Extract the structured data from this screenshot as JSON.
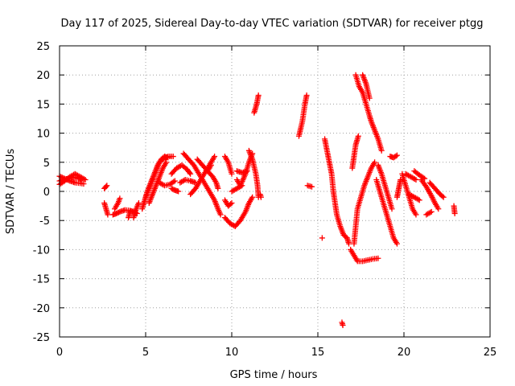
{
  "chart_data": {
    "type": "scatter",
    "title": "Day 117 of 2025, Sidereal Day-to-day VTEC variation (SDTVAR) for receiver ptgg",
    "xlabel": "GPS time / hours",
    "ylabel": "SDTVAR / TECUs",
    "xlim": [
      0,
      25
    ],
    "ylim": [
      -25,
      25
    ],
    "xticks": [
      "0",
      "5",
      "10",
      "15",
      "20",
      "25"
    ],
    "yticks": [
      "-25",
      "-20",
      "-15",
      "-10",
      "-5",
      "0",
      "5",
      "10",
      "15",
      "20",
      "25"
    ],
    "grid": true,
    "marker": "+",
    "color": "#ff0000",
    "segments": [
      [
        [
          0.0,
          1.2
        ],
        [
          0.3,
          1.8
        ],
        [
          0.6,
          2.5
        ],
        [
          0.9,
          3.0
        ],
        [
          1.2,
          2.5
        ],
        [
          1.5,
          2.0
        ]
      ],
      [
        [
          0.0,
          2.6
        ],
        [
          0.3,
          2.2
        ],
        [
          0.6,
          1.8
        ],
        [
          0.9,
          1.5
        ],
        [
          1.2,
          1.4
        ],
        [
          1.4,
          1.3
        ]
      ],
      [
        [
          0.0,
          1.8
        ],
        [
          0.2,
          2.0
        ],
        [
          0.5,
          2.2
        ],
        [
          0.8,
          2.4
        ],
        [
          1.1,
          2.2
        ],
        [
          1.3,
          2.0
        ]
      ],
      [
        [
          2.6,
          0.5
        ],
        [
          2.75,
          1.0
        ]
      ],
      [
        [
          2.6,
          -2.0
        ],
        [
          2.7,
          -3.0
        ],
        [
          2.8,
          -4.0
        ]
      ],
      [
        [
          3.1,
          -4.0
        ],
        [
          3.3,
          -3.8
        ],
        [
          3.5,
          -3.5
        ],
        [
          3.8,
          -3.2
        ],
        [
          4.1,
          -3.3
        ],
        [
          4.3,
          -3.5
        ],
        [
          4.5,
          -3.8
        ]
      ],
      [
        [
          3.2,
          -3.0
        ],
        [
          3.4,
          -2.0
        ],
        [
          3.5,
          -1.2
        ]
      ],
      [
        [
          4.0,
          -4.5
        ],
        [
          4.1,
          -3.5
        ]
      ],
      [
        [
          4.3,
          -4.5
        ],
        [
          4.45,
          -3.0
        ],
        [
          4.6,
          -2.0
        ]
      ],
      [
        [
          4.8,
          -3.0
        ],
        [
          4.95,
          -1.5
        ],
        [
          5.1,
          0.0
        ],
        [
          5.3,
          1.5
        ],
        [
          5.5,
          3.0
        ],
        [
          5.7,
          4.5
        ],
        [
          5.9,
          5.5
        ],
        [
          6.1,
          6.0
        ],
        [
          6.3,
          5.8
        ]
      ],
      [
        [
          5.0,
          -1.0
        ],
        [
          5.2,
          0.5
        ],
        [
          5.4,
          2.0
        ],
        [
          5.6,
          3.5
        ],
        [
          5.8,
          5.0
        ],
        [
          6.0,
          5.5
        ],
        [
          6.3,
          6.0
        ],
        [
          6.6,
          6.0
        ]
      ],
      [
        [
          5.2,
          -2.0
        ],
        [
          5.4,
          -0.5
        ],
        [
          5.6,
          1.0
        ],
        [
          5.8,
          2.5
        ],
        [
          6.0,
          4.0
        ],
        [
          6.2,
          5.0
        ]
      ],
      [
        [
          5.8,
          1.5
        ],
        [
          6.1,
          1.0
        ],
        [
          6.4,
          1.2
        ],
        [
          6.7,
          1.8
        ]
      ],
      [
        [
          6.5,
          3.0
        ],
        [
          6.8,
          4.0
        ],
        [
          7.1,
          4.5
        ],
        [
          7.4,
          3.8
        ],
        [
          7.6,
          3.0
        ]
      ],
      [
        [
          6.5,
          0.5
        ],
        [
          6.7,
          0.2
        ],
        [
          6.9,
          0.0
        ]
      ],
      [
        [
          7.2,
          6.5
        ],
        [
          7.5,
          5.5
        ],
        [
          7.8,
          4.5
        ],
        [
          8.1,
          3.0
        ],
        [
          8.4,
          1.5
        ],
        [
          8.7,
          0.0
        ],
        [
          9.0,
          -1.5
        ],
        [
          9.2,
          -3.0
        ],
        [
          9.35,
          -4.0
        ]
      ],
      [
        [
          7.0,
          1.5
        ],
        [
          7.3,
          2.0
        ],
        [
          7.6,
          1.8
        ],
        [
          7.9,
          1.5
        ]
      ],
      [
        [
          8.0,
          5.5
        ],
        [
          8.3,
          4.5
        ],
        [
          8.6,
          3.5
        ],
        [
          8.9,
          2.5
        ],
        [
          9.1,
          1.5
        ],
        [
          9.2,
          0.5
        ]
      ],
      [
        [
          7.6,
          -0.5
        ],
        [
          7.9,
          0.5
        ],
        [
          8.2,
          2.0
        ],
        [
          8.5,
          3.5
        ],
        [
          8.8,
          5.0
        ],
        [
          9.0,
          6.0
        ]
      ],
      [
        [
          8.8,
          4.5
        ],
        [
          8.6,
          3.5
        ]
      ],
      [
        [
          9.6,
          -1.5
        ],
        [
          9.8,
          -2.5
        ],
        [
          10.0,
          -2.0
        ]
      ],
      [
        [
          9.6,
          -4.5
        ],
        [
          9.9,
          -5.5
        ],
        [
          10.2,
          -6.0
        ],
        [
          10.5,
          -5.0
        ],
        [
          10.8,
          -3.5
        ],
        [
          11.0,
          -2.0
        ],
        [
          11.2,
          -1.0
        ]
      ],
      [
        [
          9.6,
          6.0
        ],
        [
          9.8,
          5.0
        ],
        [
          10.0,
          3.0
        ]
      ],
      [
        [
          10.3,
          2.0
        ],
        [
          10.5,
          1.0
        ],
        [
          10.8,
          3.0
        ],
        [
          11.0,
          5.0
        ],
        [
          11.2,
          6.5
        ]
      ],
      [
        [
          10.3,
          3.5
        ],
        [
          10.6,
          3.2
        ],
        [
          10.9,
          3.5
        ]
      ],
      [
        [
          10.0,
          0.0
        ],
        [
          10.3,
          0.5
        ],
        [
          10.6,
          1.0
        ]
      ],
      [
        [
          11.0,
          7.0
        ],
        [
          11.2,
          5.5
        ],
        [
          11.4,
          3.0
        ],
        [
          11.5,
          1.0
        ],
        [
          11.55,
          -1.0
        ]
      ],
      [
        [
          11.3,
          13.5
        ],
        [
          11.45,
          15.0
        ],
        [
          11.55,
          16.5
        ]
      ],
      [
        [
          11.7,
          -1.0
        ],
        [
          11.65,
          -0.5
        ]
      ],
      [
        [
          13.9,
          9.5
        ],
        [
          14.1,
          12.0
        ],
        [
          14.25,
          15.0
        ],
        [
          14.35,
          16.5
        ]
      ],
      [
        [
          14.4,
          1.0
        ],
        [
          14.65,
          0.8
        ]
      ],
      [
        [
          15.25,
          -8.0
        ]
      ],
      [
        [
          15.4,
          9.0
        ],
        [
          15.6,
          6.0
        ],
        [
          15.8,
          3.0
        ],
        [
          15.9,
          0.0
        ],
        [
          16.0,
          -2.0
        ],
        [
          16.1,
          -4.0
        ],
        [
          16.3,
          -6.0
        ],
        [
          16.5,
          -7.5
        ],
        [
          16.7,
          -8.0
        ],
        [
          16.8,
          -9.0
        ]
      ],
      [
        [
          16.9,
          -10.0
        ],
        [
          17.1,
          -11.0
        ],
        [
          17.3,
          -12.0
        ],
        [
          17.6,
          -12.0
        ],
        [
          17.9,
          -11.8
        ],
        [
          18.2,
          -11.6
        ],
        [
          18.5,
          -11.5
        ]
      ],
      [
        [
          16.4,
          -22.5
        ],
        [
          16.45,
          -23.0
        ]
      ],
      [
        [
          17.1,
          -9.0
        ],
        [
          17.2,
          -6.0
        ],
        [
          17.3,
          -3.0
        ],
        [
          17.5,
          -1.0
        ],
        [
          17.7,
          1.0
        ],
        [
          17.9,
          2.5
        ],
        [
          18.1,
          4.0
        ],
        [
          18.3,
          5.0
        ]
      ],
      [
        [
          17.0,
          4.0
        ],
        [
          17.1,
          6.0
        ],
        [
          17.2,
          8.0
        ],
        [
          17.35,
          9.5
        ]
      ],
      [
        [
          17.2,
          20.0
        ],
        [
          17.4,
          18.0
        ],
        [
          17.6,
          17.0
        ],
        [
          17.8,
          15.0
        ],
        [
          18.0,
          13.0
        ],
        [
          18.1,
          12.0
        ],
        [
          18.3,
          10.5
        ],
        [
          18.5,
          9.0
        ],
        [
          18.7,
          7.0
        ]
      ],
      [
        [
          17.6,
          20.0
        ],
        [
          17.8,
          18.5
        ],
        [
          18.0,
          16.0
        ]
      ],
      [
        [
          18.4,
          2.0
        ],
        [
          18.6,
          0.0
        ],
        [
          18.8,
          -2.0
        ],
        [
          19.0,
          -4.0
        ],
        [
          19.2,
          -6.0
        ],
        [
          19.4,
          -8.0
        ],
        [
          19.6,
          -9.0
        ]
      ],
      [
        [
          18.5,
          4.5
        ],
        [
          18.7,
          3.0
        ],
        [
          18.9,
          1.0
        ],
        [
          19.1,
          -1.0
        ],
        [
          19.3,
          -3.0
        ]
      ],
      [
        [
          19.6,
          -1.0
        ],
        [
          19.7,
          0.5
        ],
        [
          19.8,
          2.0
        ]
      ],
      [
        [
          19.2,
          6.0
        ],
        [
          19.4,
          5.8
        ],
        [
          19.6,
          6.2
        ]
      ],
      [
        [
          19.9,
          3.0
        ],
        [
          20.1,
          1.0
        ],
        [
          20.3,
          -1.0
        ],
        [
          20.5,
          -3.0
        ],
        [
          20.7,
          -4.0
        ]
      ],
      [
        [
          20.1,
          3.0
        ],
        [
          20.4,
          2.5
        ],
        [
          20.7,
          2.0
        ]
      ],
      [
        [
          20.3,
          -0.5
        ],
        [
          20.6,
          -1.0
        ],
        [
          20.9,
          -1.5
        ]
      ],
      [
        [
          20.6,
          3.5
        ],
        [
          20.9,
          2.8
        ],
        [
          21.2,
          2.2
        ]
      ],
      [
        [
          21.0,
          2.0
        ],
        [
          21.3,
          0.8
        ],
        [
          21.6,
          -0.8
        ],
        [
          21.8,
          -2.0
        ],
        [
          22.0,
          -3.0
        ]
      ],
      [
        [
          21.5,
          1.5
        ],
        [
          21.8,
          0.5
        ],
        [
          22.1,
          -0.5
        ],
        [
          22.3,
          -1.0
        ]
      ],
      [
        [
          21.3,
          -4.0
        ],
        [
          21.6,
          -3.5
        ]
      ],
      [
        [
          22.9,
          -2.5
        ],
        [
          22.95,
          -3.8
        ]
      ]
    ]
  }
}
